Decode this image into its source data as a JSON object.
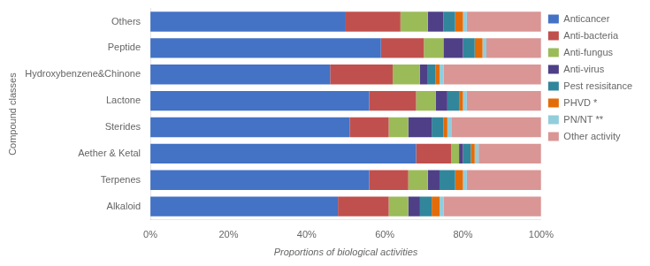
{
  "chart_data": {
    "type": "bar",
    "orientation": "horizontal",
    "stacked": true,
    "xlabel": "Proportions of biological activities",
    "ylabel": "Compound classes",
    "categories": [
      "Alkaloid",
      "Terpenes",
      "Aether & Ketal",
      "Sterides",
      "Lactone",
      "Hydroxybenzene&Chinone",
      "Peptide",
      "Others"
    ],
    "series": [
      {
        "name": "Anticancer",
        "color": "#4472C4",
        "values": [
          48,
          56,
          68,
          51,
          56,
          46,
          59,
          50
        ]
      },
      {
        "name": "Anti-bacteria",
        "color": "#C0504D",
        "values": [
          13,
          10,
          9,
          10,
          12,
          16,
          11,
          14
        ]
      },
      {
        "name": "Anti-fungus",
        "color": "#9BBB59",
        "values": [
          5,
          5,
          2,
          5,
          5,
          7,
          5,
          7
        ]
      },
      {
        "name": "Anti-virus",
        "color": "#4F3F87",
        "values": [
          3,
          3,
          1,
          6,
          3,
          2,
          5,
          4
        ]
      },
      {
        "name": "Pest resisitance",
        "color": "#31869B",
        "values": [
          3,
          4,
          2,
          3,
          3,
          2,
          3,
          3
        ]
      },
      {
        "name": "PHVD *",
        "color": "#E36C09",
        "values": [
          2,
          2,
          1,
          1,
          1,
          1,
          2,
          2
        ]
      },
      {
        "name": "PN/NT **",
        "color": "#92CDDC",
        "values": [
          1,
          1,
          1,
          1,
          1,
          1,
          1,
          1
        ]
      },
      {
        "name": "Other activity",
        "color": "#D99694",
        "values": [
          25,
          19,
          16,
          23,
          19,
          25,
          14,
          19
        ]
      }
    ],
    "xlim": [
      0,
      100
    ],
    "xticks": [
      {
        "value": 0,
        "label": "0%"
      },
      {
        "value": 20,
        "label": "20%"
      },
      {
        "value": 40,
        "label": "40%"
      },
      {
        "value": 60,
        "label": "60%"
      },
      {
        "value": 80,
        "label": "80%"
      },
      {
        "value": 100,
        "label": "100%"
      }
    ],
    "grid": false,
    "legend": "right"
  }
}
